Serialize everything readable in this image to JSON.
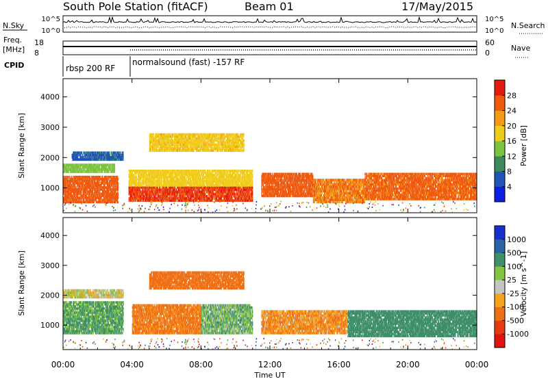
{
  "header": {
    "station": "South Pole Station (fitACF)",
    "beam": "Beam 01",
    "date": "17/May/2015"
  },
  "top_panels": {
    "nsky_label": "N.Sky",
    "nsky_ticks": [
      "10^5",
      "10^0"
    ],
    "nsearch_label": "N.Search",
    "nsearch_ticks": [
      "10^5",
      "10^0"
    ],
    "freq_label_line1": "Freq.",
    "freq_label_line2": "[MHz]",
    "freq_ticks": [
      "18",
      "8"
    ],
    "nave_label": "Nave",
    "nave_ticks": [
      "60",
      "0"
    ],
    "cpid_label": "CPID",
    "cpid_modes": [
      "rbsp 200 RF",
      "normalsound (fast) -157 RF"
    ]
  },
  "x_axis": {
    "ticks": [
      "00:00",
      "04:00",
      "08:00",
      "12:00",
      "16:00",
      "20:00",
      "00:00"
    ],
    "label": "Time UT"
  },
  "power_colorbar": {
    "label": "Power [dB]",
    "ticks": [
      "4",
      "8",
      "12",
      "16",
      "20",
      "24",
      "28"
    ],
    "colors": [
      "#0f1ee6",
      "#1f55b4",
      "#3a8a5c",
      "#7cc43f",
      "#f0cc1a",
      "#f59a14",
      "#ef5a0f",
      "#e61a0f"
    ]
  },
  "velocity_colorbar": {
    "label": "Velocity [m s^-1]",
    "ticks": [
      "1000",
      "500",
      "100",
      "25",
      "-25",
      "-100",
      "-500",
      "-1000"
    ],
    "colors": [
      "#1a2fd0",
      "#2a62a8",
      "#3f8f6a",
      "#84c443",
      "#c4c4c0",
      "#f5a31c",
      "#f07016",
      "#e83a12",
      "#e0140f"
    ]
  },
  "chart_data": [
    {
      "type": "heatmap",
      "name": "Power",
      "xlabel": "Time UT",
      "ylabel": "Slant Range [km]",
      "x_range_hours": [
        0,
        24
      ],
      "ylim": [
        180,
        4600
      ],
      "yticks": [
        "1000",
        "2000",
        "3000",
        "4000"
      ],
      "clim": [
        0,
        32
      ],
      "bands": [
        {
          "t0": 0.0,
          "t1": 3.2,
          "y0": 500,
          "y1": 1400,
          "value": 26
        },
        {
          "t0": 0.0,
          "t1": 3.0,
          "y0": 1500,
          "y1": 1800,
          "value": 14
        },
        {
          "t0": 0.5,
          "t1": 3.5,
          "y0": 1900,
          "y1": 2200,
          "value": 7
        },
        {
          "t0": 3.8,
          "t1": 11.0,
          "y0": 550,
          "y1": 1050,
          "value": 28
        },
        {
          "t0": 3.8,
          "t1": 11.0,
          "y0": 1050,
          "y1": 1600,
          "value": 18
        },
        {
          "t0": 5.0,
          "t1": 10.5,
          "y0": 2200,
          "y1": 2800,
          "value": 19
        },
        {
          "t0": 11.5,
          "t1": 14.5,
          "y0": 700,
          "y1": 1500,
          "value": 26
        },
        {
          "t0": 14.5,
          "t1": 17.5,
          "y0": 500,
          "y1": 1300,
          "value": 24
        },
        {
          "t0": 17.5,
          "t1": 24.0,
          "y0": 600,
          "y1": 1500,
          "value": 25
        }
      ]
    },
    {
      "type": "heatmap",
      "name": "Velocity",
      "xlabel": "Time UT",
      "ylabel": "Slant Range [km]",
      "x_range_hours": [
        0,
        24
      ],
      "ylim": [
        180,
        4600
      ],
      "yticks": [
        "1000",
        "2000",
        "3000",
        "4000"
      ],
      "clim": [
        -1000,
        1000
      ],
      "bands": [
        {
          "t0": 0.0,
          "t1": 3.5,
          "y0": 700,
          "y1": 1800,
          "value": 120
        },
        {
          "t0": 0.0,
          "t1": 3.5,
          "y0": 1900,
          "y1": 2200,
          "value": 0
        },
        {
          "t0": 4.0,
          "t1": 8.0,
          "y0": 700,
          "y1": 1700,
          "value": -150
        },
        {
          "t0": 5.0,
          "t1": 10.5,
          "y0": 2200,
          "y1": 2800,
          "value": -200
        },
        {
          "t0": 8.0,
          "t1": 11.0,
          "y0": 700,
          "y1": 1700,
          "value": 80
        },
        {
          "t0": 11.5,
          "t1": 16.5,
          "y0": 700,
          "y1": 1500,
          "value": -100
        },
        {
          "t0": 16.5,
          "t1": 24.0,
          "y0": 600,
          "y1": 1500,
          "value": 200
        }
      ]
    }
  ]
}
